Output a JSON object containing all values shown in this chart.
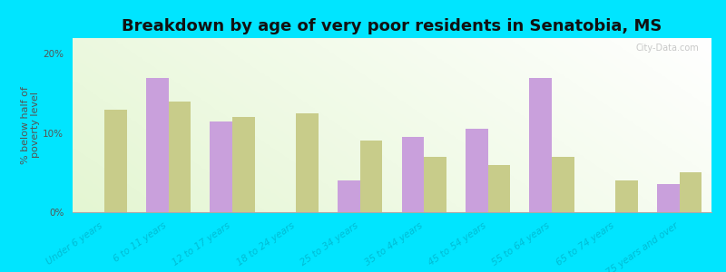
{
  "title": "Breakdown by age of very poor residents in Senatobia, MS",
  "ylabel": "% below half of\npoverty level",
  "categories": [
    "Under 6 years",
    "6 to 11 years",
    "12 to 17 years",
    "18 to 24 years",
    "25 to 34 years",
    "35 to 44 years",
    "45 to 54 years",
    "55 to 64 years",
    "65 to 74 years",
    "75 years and over"
  ],
  "senatobia": [
    0,
    17.0,
    11.5,
    0,
    4.0,
    9.5,
    10.5,
    17.0,
    0,
    3.5
  ],
  "mississippi": [
    13.0,
    14.0,
    12.0,
    12.5,
    9.0,
    7.0,
    6.0,
    7.0,
    4.0,
    5.0
  ],
  "senatobia_color": "#c9a0dc",
  "mississippi_color": "#c8cc8a",
  "background_color": "#00e5ff",
  "ylim": [
    0,
    22
  ],
  "yticks": [
    0,
    10,
    20
  ],
  "ytick_labels": [
    "0%",
    "10%",
    "20%"
  ],
  "bar_width": 0.35,
  "title_fontsize": 13,
  "axis_label_fontsize": 8,
  "tick_fontsize": 7.5,
  "legend_fontsize": 9,
  "watermark": "City-Data.com"
}
